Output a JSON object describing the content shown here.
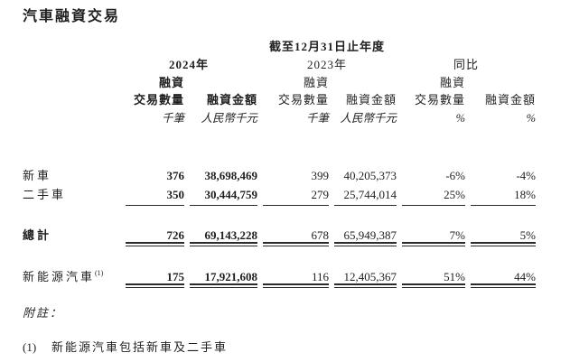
{
  "title": "汽車融資交易",
  "colors": {
    "background": "#ffffff",
    "text": "#1f1f1f",
    "rule": "#2b2b2b"
  },
  "table": {
    "period_header": "截至12月31日止年度",
    "year_groups": [
      {
        "label": "2024年"
      },
      {
        "label": "2023年"
      },
      {
        "label": "同比"
      }
    ],
    "sub": {
      "financing": "融資",
      "count": "交易數量",
      "amount": "融資金額"
    },
    "units": {
      "count": "千筆",
      "amount": "人民幣千元",
      "pct": "%"
    },
    "rows": [
      {
        "label": "新車",
        "values": [
          "376",
          "38,698,469",
          "399",
          "40,205,373",
          "-6%",
          "-4%"
        ]
      },
      {
        "label": "二手車",
        "values": [
          "350",
          "30,444,759",
          "279",
          "25,744,014",
          "25%",
          "18%"
        ]
      },
      {
        "label": "總計",
        "values": [
          "726",
          "69,143,228",
          "678",
          "65,949,387",
          "7%",
          "5%"
        ]
      },
      {
        "label": "新能源汽車",
        "sup": "(1)",
        "values": [
          "175",
          "17,921,608",
          "116",
          "12,405,367",
          "51%",
          "44%"
        ]
      }
    ]
  },
  "footnotes": {
    "heading": "附註：",
    "items": [
      {
        "marker": "(1)",
        "text": "新能源汽車包括新車及二手車"
      }
    ]
  }
}
